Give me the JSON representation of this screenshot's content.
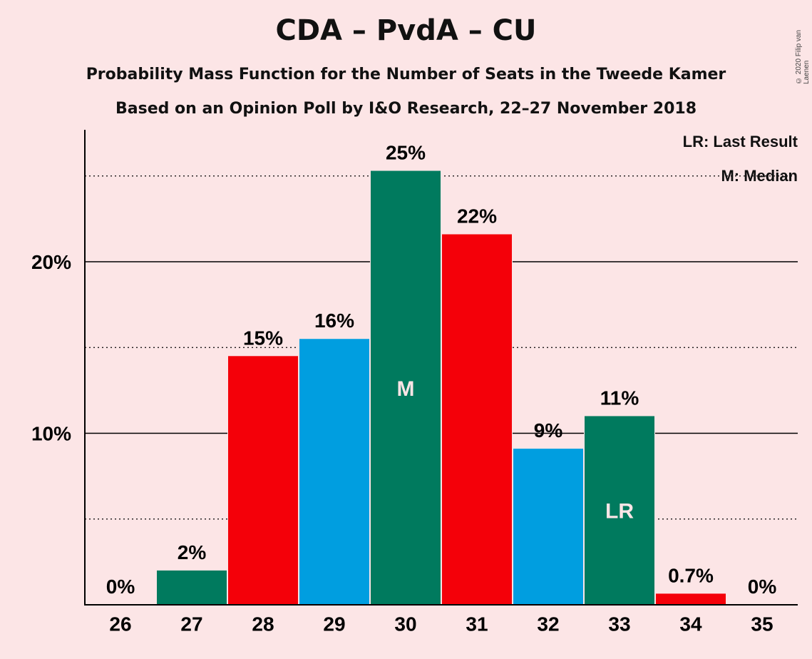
{
  "chart_data": {
    "type": "bar",
    "title": "CDA – PvdA – CU",
    "subtitle": "Probability Mass Function for the Number of Seats in the Tweede Kamer",
    "subtitle2": "Based on an Opinion Poll by I&O Research, 22–27 November 2018",
    "copyright": "© 2020 Filip van Laenen",
    "legend": {
      "lr": "LR: Last Result",
      "m": "M: Median",
      "position": "top-right"
    },
    "categories": [
      "26",
      "27",
      "28",
      "29",
      "30",
      "31",
      "32",
      "33",
      "34",
      "35"
    ],
    "values": [
      0,
      2.0,
      14.5,
      15.5,
      25.3,
      21.6,
      9.1,
      11.0,
      0.65,
      0
    ],
    "labels": [
      "0%",
      "2%",
      "15%",
      "16%",
      "25%",
      "22%",
      "9%",
      "11%",
      "0.7%",
      "0%"
    ],
    "bar_colors": [
      "#007A5E",
      "#007A5E",
      "#F40009",
      "#009EE0",
      "#007A5E",
      "#F40009",
      "#009EE0",
      "#007A5E",
      "#F40009",
      "#009EE0"
    ],
    "markers": {
      "30": "M",
      "33": "LR"
    },
    "yticks": [
      {
        "value": 10,
        "label": "10%"
      },
      {
        "value": 20,
        "label": "20%"
      }
    ],
    "minor_gridlines": [
      5,
      15,
      25
    ],
    "ylim": [
      0,
      27.5
    ],
    "grid": true,
    "colors": {
      "green": "#007A5E",
      "red": "#F40009",
      "blue": "#009EE0",
      "background": "#FCE5E6"
    }
  }
}
